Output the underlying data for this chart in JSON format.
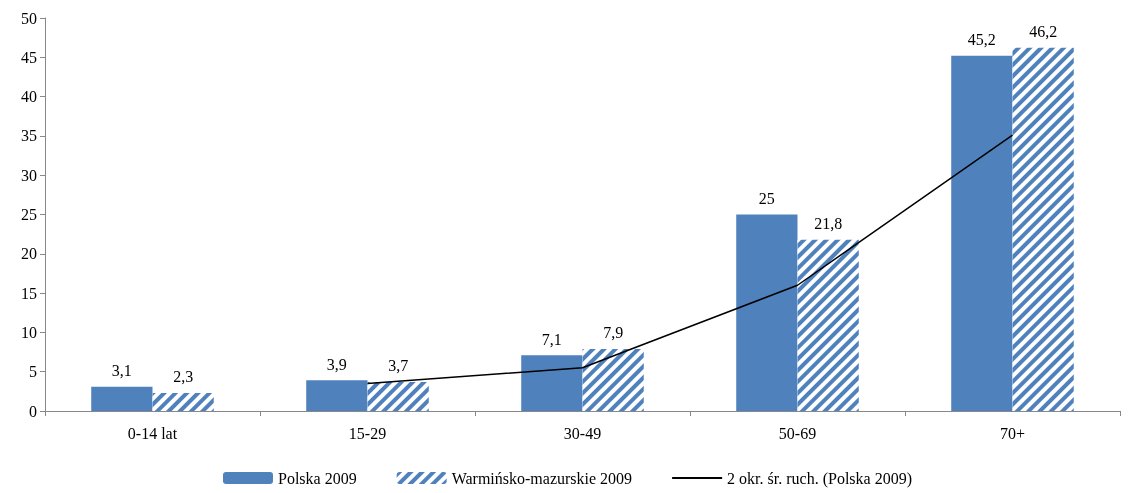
{
  "chart_data": {
    "type": "bar",
    "categories": [
      "0-14 lat",
      "15-29",
      "30-49",
      "50-69",
      "70+"
    ],
    "series": [
      {
        "name": "Polska 2009",
        "color": "#4f81bd",
        "values": [
          3.1,
          3.9,
          7.1,
          25,
          45.2
        ],
        "value_labels": [
          "3,1",
          "3,9",
          "7,1",
          "25",
          "45,2"
        ]
      },
      {
        "name": "Warmińsko-mazurskie 2009",
        "color": "#4f81bd",
        "values": [
          2.3,
          3.7,
          7.9,
          21.8,
          46.2
        ],
        "value_labels": [
          "2,3",
          "3,7",
          "7,9",
          "21,8",
          "46,2"
        ]
      },
      {
        "name": "2 okr. śr. ruch. (Polska 2009)",
        "type": "line",
        "color": "#000000",
        "values": [
          null,
          3.5,
          5.5,
          16,
          35.1
        ]
      }
    ],
    "ylim": [
      0,
      50
    ],
    "yticks": [
      0,
      5,
      10,
      15,
      20,
      25,
      30,
      35,
      40,
      45,
      50
    ],
    "grid": false,
    "legend": "bottom",
    "marker": "none",
    "line_style": "solid"
  }
}
